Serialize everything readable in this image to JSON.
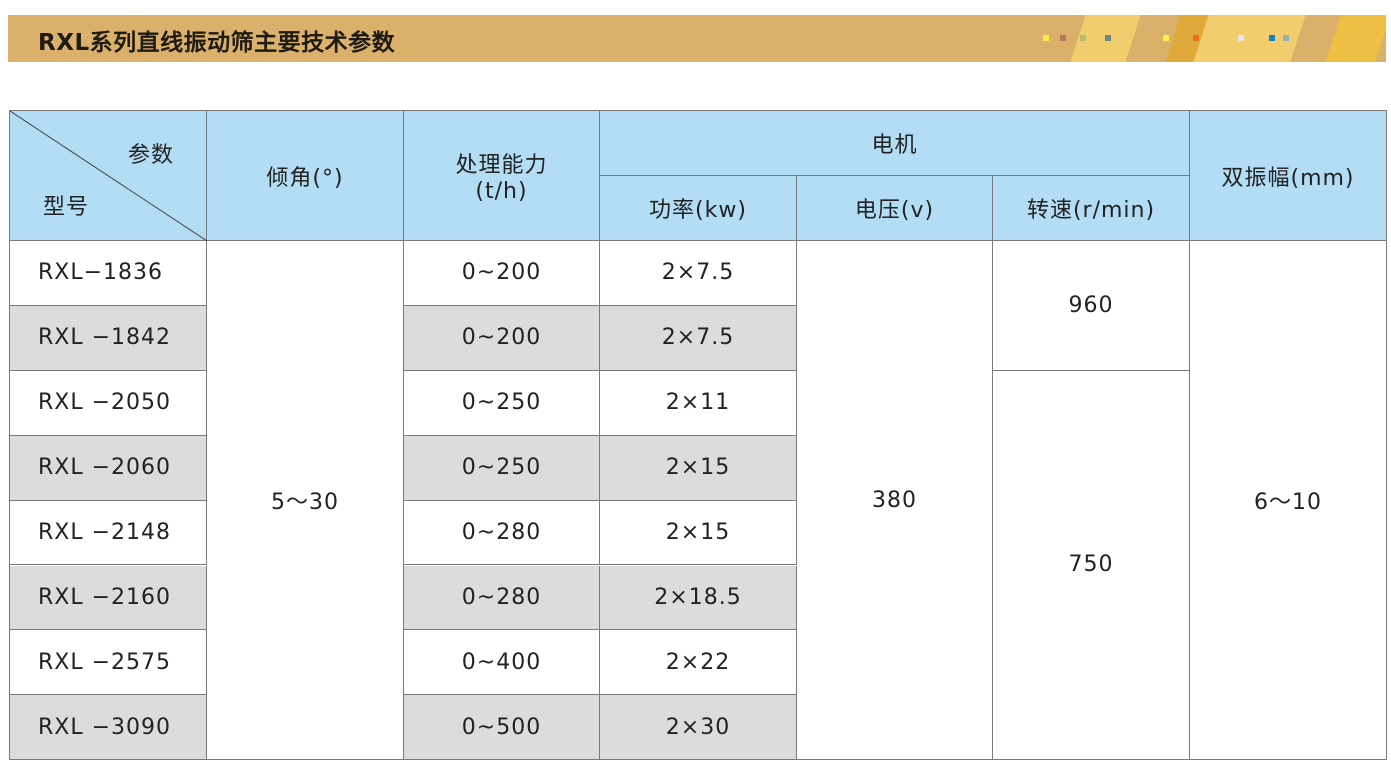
{
  "title": "RXL系列直线振动筛主要技术参数",
  "colors": {
    "banner": "#dab06b",
    "header": "#b3dcf5",
    "alt_row": "#dcdcdc"
  },
  "header": {
    "param": "参数",
    "model": "型号",
    "angle": "倾角(°)",
    "capacity_line1": "处理能力",
    "capacity_line2": "(t/h)",
    "motor": "电机",
    "power": "功率(kw)",
    "voltage": "电压(v)",
    "speed": "转速(r/min)",
    "amplitude": "双振幅(mm)"
  },
  "rows": [
    {
      "model": "RXL−1836",
      "capacity": "0~200",
      "power": "2×7.5"
    },
    {
      "model": "RXL −1842",
      "capacity": "0~200",
      "power": "2×7.5"
    },
    {
      "model": "RXL −2050",
      "capacity": "0~250",
      "power": "2×11"
    },
    {
      "model": "RXL −2060",
      "capacity": "0~250",
      "power": "2×15"
    },
    {
      "model": "RXL −2148",
      "capacity": "0~280",
      "power": "2×15"
    },
    {
      "model": "RXL −2160",
      "capacity": "0~280",
      "power": "2×18.5"
    },
    {
      "model": "RXL −2575",
      "capacity": "0~400",
      "power": "2×22"
    },
    {
      "model": "RXL −3090",
      "capacity": "0~500",
      "power": "2×30"
    }
  ],
  "merged": {
    "angle": "5～30",
    "voltage": "380",
    "speed_a": "960",
    "speed_b": "750",
    "amplitude": "6～10"
  }
}
